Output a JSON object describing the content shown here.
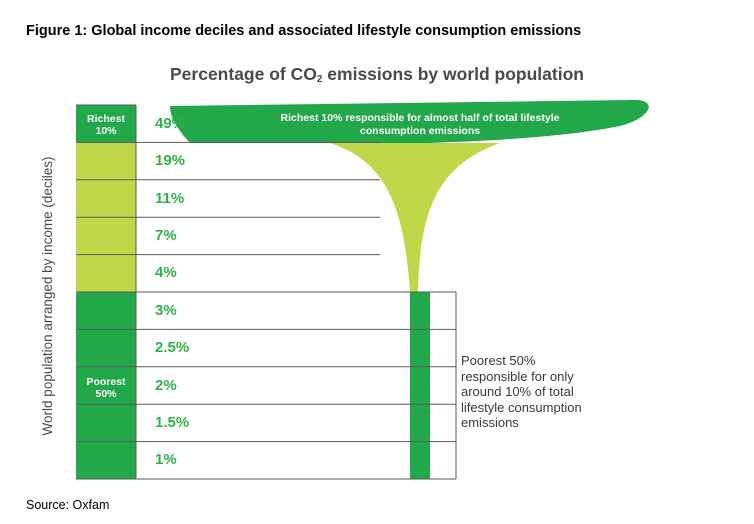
{
  "figure_title": "Figure 1: Global income deciles and associated lifestyle consumption emissions",
  "source": "Source: Oxfam",
  "colors": {
    "dark_green": "#22a84a",
    "light_green": "#bfd84a",
    "pct_text": "#2eb34a"
  },
  "chart_data": {
    "type": "bar",
    "title": "Percentage of CO",
    "title_sub": "2",
    "title_rest": " emissions by world population",
    "ylabel": "World population arranged by income (deciles)",
    "categories": [
      "Richest 10%",
      "",
      "",
      "",
      "",
      "",
      "",
      "",
      "",
      ""
    ],
    "values": [
      49,
      19,
      11,
      7,
      4,
      3,
      2.5,
      2,
      1.5,
      1
    ],
    "value_labels": [
      "49%",
      "19%",
      "11%",
      "7%",
      "4%",
      "3%",
      "2.5%",
      "2%",
      "1.5%",
      "1%"
    ],
    "group_labels": {
      "richest": "Richest 10%",
      "poorest": "Poorest 50%"
    },
    "annotations": {
      "richest": "Richest 10% responsible for almost half of total lifestyle consumption emissions",
      "poorest": "Poorest 50% responsible for only around 10% of total lifestyle consumption emissions"
    },
    "grid": true,
    "legend": "none"
  }
}
